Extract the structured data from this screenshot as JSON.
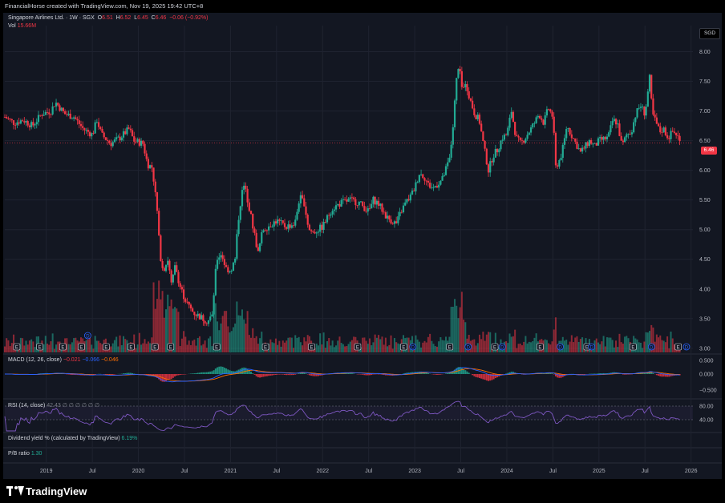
{
  "header": {
    "attribution": "FinancialHorse created with TradingView.com, Nov 19, 2025 19:42 UTC+8"
  },
  "symbol": {
    "name": "Singapore Airlines Ltd.",
    "interval": "1W",
    "exchange": "SGX",
    "title_line": "Singapore Airlines Ltd. · 1W · SGX",
    "open_label": "O",
    "open": "6.51",
    "high_label": "H",
    "high": "6.52",
    "low_label": "L",
    "low": "6.45",
    "close_label": "C",
    "close": "6.46",
    "change": "−0.06 (−0.92%)",
    "vol_label": "Vol",
    "volume": "15.66M",
    "currency": "SGD",
    "last_price": "6.46"
  },
  "indicators": {
    "macd_label": "MACD (12, 26, close)",
    "macd_hist": "−0.021",
    "macd_line": "−0.066",
    "macd_signal": "−0.046",
    "rsi_label": "RSI (14, close)",
    "rsi_value": "42.43",
    "rsi_extra": "∅ ∅ ∅ ∅ ∅ ∅",
    "div_label": "Dividend yield % (calculated by TradingView)",
    "div_value": "6.19%",
    "pb_label": "P/B ratio",
    "pb_value": "1.30"
  },
  "colors": {
    "up": "#22ab94",
    "down": "#f23645",
    "macd_line": "#2962ff",
    "macd_signal": "#ff6d00",
    "rsi": "#7e57c2",
    "background": "#131722",
    "grid": "#1f2330"
  },
  "brand": {
    "logo_text": "TradingView"
  },
  "chart_data": {
    "type": "candlestick",
    "price_axis": {
      "ticks": [
        "8.00",
        "7.50",
        "7.00",
        "6.50",
        "6.00",
        "5.50",
        "5.00",
        "4.50",
        "4.00",
        "3.50",
        "3.00"
      ],
      "range": [
        2.93,
        8.25
      ]
    },
    "macd_axis": {
      "ticks": [
        "0.500",
        "0.000",
        "−0.500"
      ]
    },
    "rsi_axis": {
      "ticks": [
        "80.00",
        "40.00"
      ]
    },
    "time_axis": {
      "labels": [
        "2019",
        "Jul",
        "2020",
        "Jul",
        "2021",
        "Jul",
        "2022",
        "Jul",
        "2023",
        "Jul",
        "2024",
        "Jul",
        "2025",
        "Jul",
        "2026"
      ],
      "positions": [
        2019.0,
        2019.5,
        2020.0,
        2020.5,
        2021.0,
        2021.5,
        2022.0,
        2022.5,
        2023.0,
        2023.5,
        2024.0,
        2024.5,
        2025.0,
        2025.5,
        2026.0
      ]
    },
    "price_path": [
      [
        2018.55,
        6.9
      ],
      [
        2018.65,
        6.8
      ],
      [
        2018.75,
        6.85
      ],
      [
        2018.85,
        6.75
      ],
      [
        2018.95,
        6.95
      ],
      [
        2019.05,
        7.0
      ],
      [
        2019.1,
        7.15
      ],
      [
        2019.2,
        6.95
      ],
      [
        2019.3,
        6.9
      ],
      [
        2019.4,
        6.7
      ],
      [
        2019.5,
        6.6
      ],
      [
        2019.55,
        6.85
      ],
      [
        2019.6,
        6.6
      ],
      [
        2019.7,
        6.45
      ],
      [
        2019.8,
        6.55
      ],
      [
        2019.9,
        6.7
      ],
      [
        2019.95,
        6.5
      ],
      [
        2020.05,
        6.45
      ],
      [
        2020.1,
        6.1
      ],
      [
        2020.15,
        6.05
      ],
      [
        2020.2,
        5.4
      ],
      [
        2020.22,
        4.9
      ],
      [
        2020.25,
        4.4
      ],
      [
        2020.28,
        4.35
      ],
      [
        2020.32,
        4.5
      ],
      [
        2020.36,
        4.05
      ],
      [
        2020.4,
        4.4
      ],
      [
        2020.45,
        4.05
      ],
      [
        2020.5,
        3.85
      ],
      [
        2020.55,
        3.7
      ],
      [
        2020.6,
        3.6
      ],
      [
        2020.65,
        3.55
      ],
      [
        2020.7,
        3.5
      ],
      [
        2020.75,
        3.45
      ],
      [
        2020.8,
        3.55
      ],
      [
        2020.85,
        4.5
      ],
      [
        2020.9,
        4.6
      ],
      [
        2020.95,
        4.35
      ],
      [
        2021.0,
        4.3
      ],
      [
        2021.05,
        4.5
      ],
      [
        2021.08,
        5.1
      ],
      [
        2021.12,
        5.6
      ],
      [
        2021.15,
        5.75
      ],
      [
        2021.2,
        5.4
      ],
      [
        2021.25,
        5.0
      ],
      [
        2021.3,
        4.6
      ],
      [
        2021.35,
        5.0
      ],
      [
        2021.4,
        5.05
      ],
      [
        2021.5,
        5.15
      ],
      [
        2021.6,
        5.05
      ],
      [
        2021.7,
        5.1
      ],
      [
        2021.75,
        5.55
      ],
      [
        2021.8,
        5.45
      ],
      [
        2021.85,
        5.0
      ],
      [
        2021.9,
        4.95
      ],
      [
        2022.0,
        5.05
      ],
      [
        2022.1,
        5.35
      ],
      [
        2022.2,
        5.45
      ],
      [
        2022.3,
        5.5
      ],
      [
        2022.4,
        5.45
      ],
      [
        2022.5,
        5.3
      ],
      [
        2022.55,
        5.5
      ],
      [
        2022.6,
        5.45
      ],
      [
        2022.7,
        5.2
      ],
      [
        2022.8,
        5.1
      ],
      [
        2022.85,
        5.3
      ],
      [
        2022.9,
        5.45
      ],
      [
        2022.95,
        5.55
      ],
      [
        2023.0,
        5.7
      ],
      [
        2023.05,
        5.95
      ],
      [
        2023.1,
        5.9
      ],
      [
        2023.15,
        5.75
      ],
      [
        2023.2,
        5.7
      ],
      [
        2023.3,
        5.85
      ],
      [
        2023.38,
        6.2
      ],
      [
        2023.42,
        6.8
      ],
      [
        2023.45,
        7.5
      ],
      [
        2023.48,
        7.75
      ],
      [
        2023.52,
        7.3
      ],
      [
        2023.55,
        7.5
      ],
      [
        2023.6,
        7.2
      ],
      [
        2023.65,
        6.95
      ],
      [
        2023.7,
        6.85
      ],
      [
        2023.75,
        6.4
      ],
      [
        2023.8,
        6.0
      ],
      [
        2023.85,
        6.25
      ],
      [
        2023.9,
        6.35
      ],
      [
        2023.95,
        6.55
      ],
      [
        2024.0,
        6.6
      ],
      [
        2024.05,
        7.0
      ],
      [
        2024.1,
        6.55
      ],
      [
        2024.15,
        6.45
      ],
      [
        2024.2,
        6.55
      ],
      [
        2024.3,
        6.8
      ],
      [
        2024.35,
        6.95
      ],
      [
        2024.4,
        6.8
      ],
      [
        2024.45,
        7.05
      ],
      [
        2024.5,
        6.9
      ],
      [
        2024.53,
        6.05
      ],
      [
        2024.58,
        6.2
      ],
      [
        2024.62,
        6.45
      ],
      [
        2024.65,
        6.75
      ],
      [
        2024.7,
        6.6
      ],
      [
        2024.8,
        6.3
      ],
      [
        2024.9,
        6.5
      ],
      [
        2024.95,
        6.4
      ],
      [
        2025.0,
        6.5
      ],
      [
        2025.1,
        6.55
      ],
      [
        2025.15,
        6.85
      ],
      [
        2025.2,
        6.8
      ],
      [
        2025.25,
        6.4
      ],
      [
        2025.3,
        6.6
      ],
      [
        2025.35,
        6.65
      ],
      [
        2025.4,
        6.95
      ],
      [
        2025.45,
        7.1
      ],
      [
        2025.5,
        6.95
      ],
      [
        2025.55,
        7.55
      ],
      [
        2025.58,
        6.95
      ],
      [
        2025.62,
        6.8
      ],
      [
        2025.66,
        6.65
      ],
      [
        2025.7,
        6.7
      ],
      [
        2025.75,
        6.55
      ],
      [
        2025.8,
        6.65
      ],
      [
        2025.85,
        6.6
      ],
      [
        2025.88,
        6.46
      ]
    ],
    "markers": [
      {
        "label": "E",
        "x": 2018.68
      },
      {
        "label": "E",
        "x": 2018.93
      },
      {
        "label": "E",
        "x": 2019.18
      },
      {
        "label": "E",
        "x": 2019.38
      },
      {
        "label": "E",
        "x": 2019.65
      },
      {
        "label": "E",
        "x": 2019.92
      },
      {
        "label": "E",
        "x": 2020.18
      },
      {
        "label": "E",
        "x": 2020.35
      },
      {
        "label": "E",
        "x": 2020.85
      },
      {
        "label": "E",
        "x": 2021.38
      },
      {
        "label": "E",
        "x": 2021.88
      },
      {
        "label": "E",
        "x": 2022.38
      },
      {
        "label": "E",
        "x": 2022.88
      },
      {
        "label": "D",
        "x": 2022.98
      },
      {
        "label": "E",
        "x": 2023.38
      },
      {
        "label": "D",
        "x": 2023.58
      },
      {
        "label": "E",
        "x": 2023.87
      },
      {
        "label": "D",
        "x": 2023.95
      },
      {
        "label": "E",
        "x": 2024.36
      },
      {
        "label": "D",
        "x": 2024.58
      },
      {
        "label": "E",
        "x": 2024.87
      },
      {
        "label": "D",
        "x": 2024.92
      },
      {
        "label": "E",
        "x": 2025.37
      },
      {
        "label": "D",
        "x": 2025.57
      },
      {
        "label": "E",
        "x": 2025.86
      },
      {
        "label": "D",
        "x": 2025.95
      },
      {
        "label": "D",
        "x": 2019.45
      }
    ]
  }
}
